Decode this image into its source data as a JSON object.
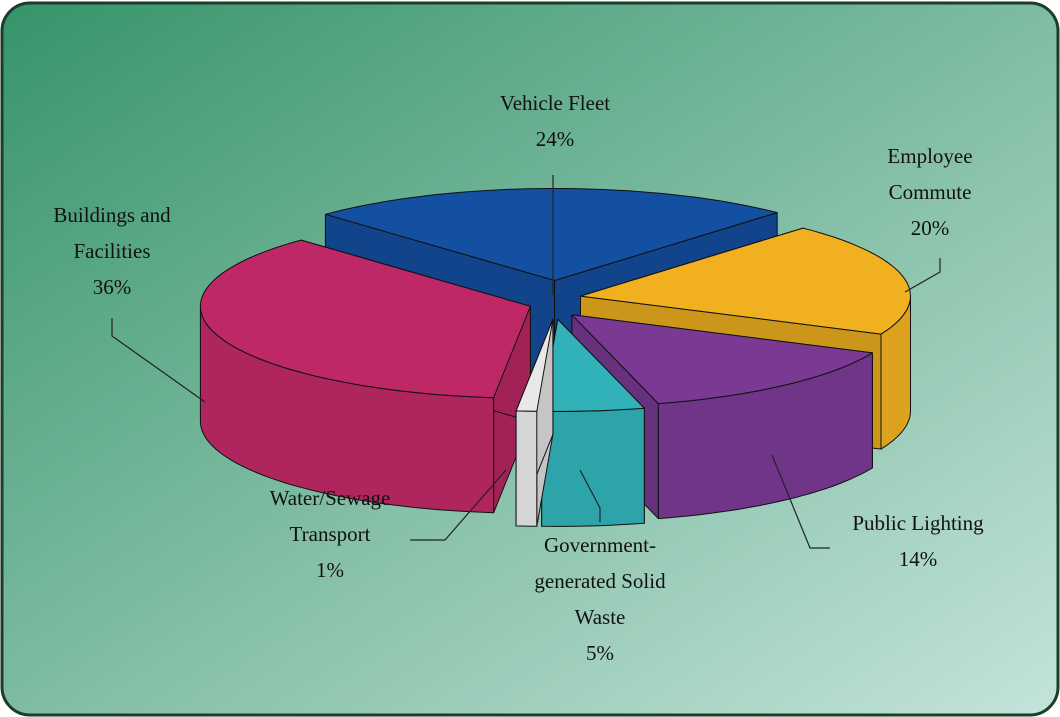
{
  "chart_data": {
    "type": "pie3d",
    "categories": [
      "Vehicle Fleet",
      "Employee Commute",
      "Public Lighting",
      "Government-generated Solid Waste",
      "Water/Sewage Transport",
      "Buildings and Facilities"
    ],
    "values": [
      24,
      20,
      14,
      5,
      1,
      36
    ],
    "value_labels": [
      "24%",
      "20%",
      "14%",
      "5%",
      "1%",
      "36%"
    ],
    "colors": [
      "#1450a2",
      "#f0b020",
      "#7a3a94",
      "#30b2b8",
      "#e8e8e8",
      "#be2866"
    ],
    "start_angle": -134
  }
}
